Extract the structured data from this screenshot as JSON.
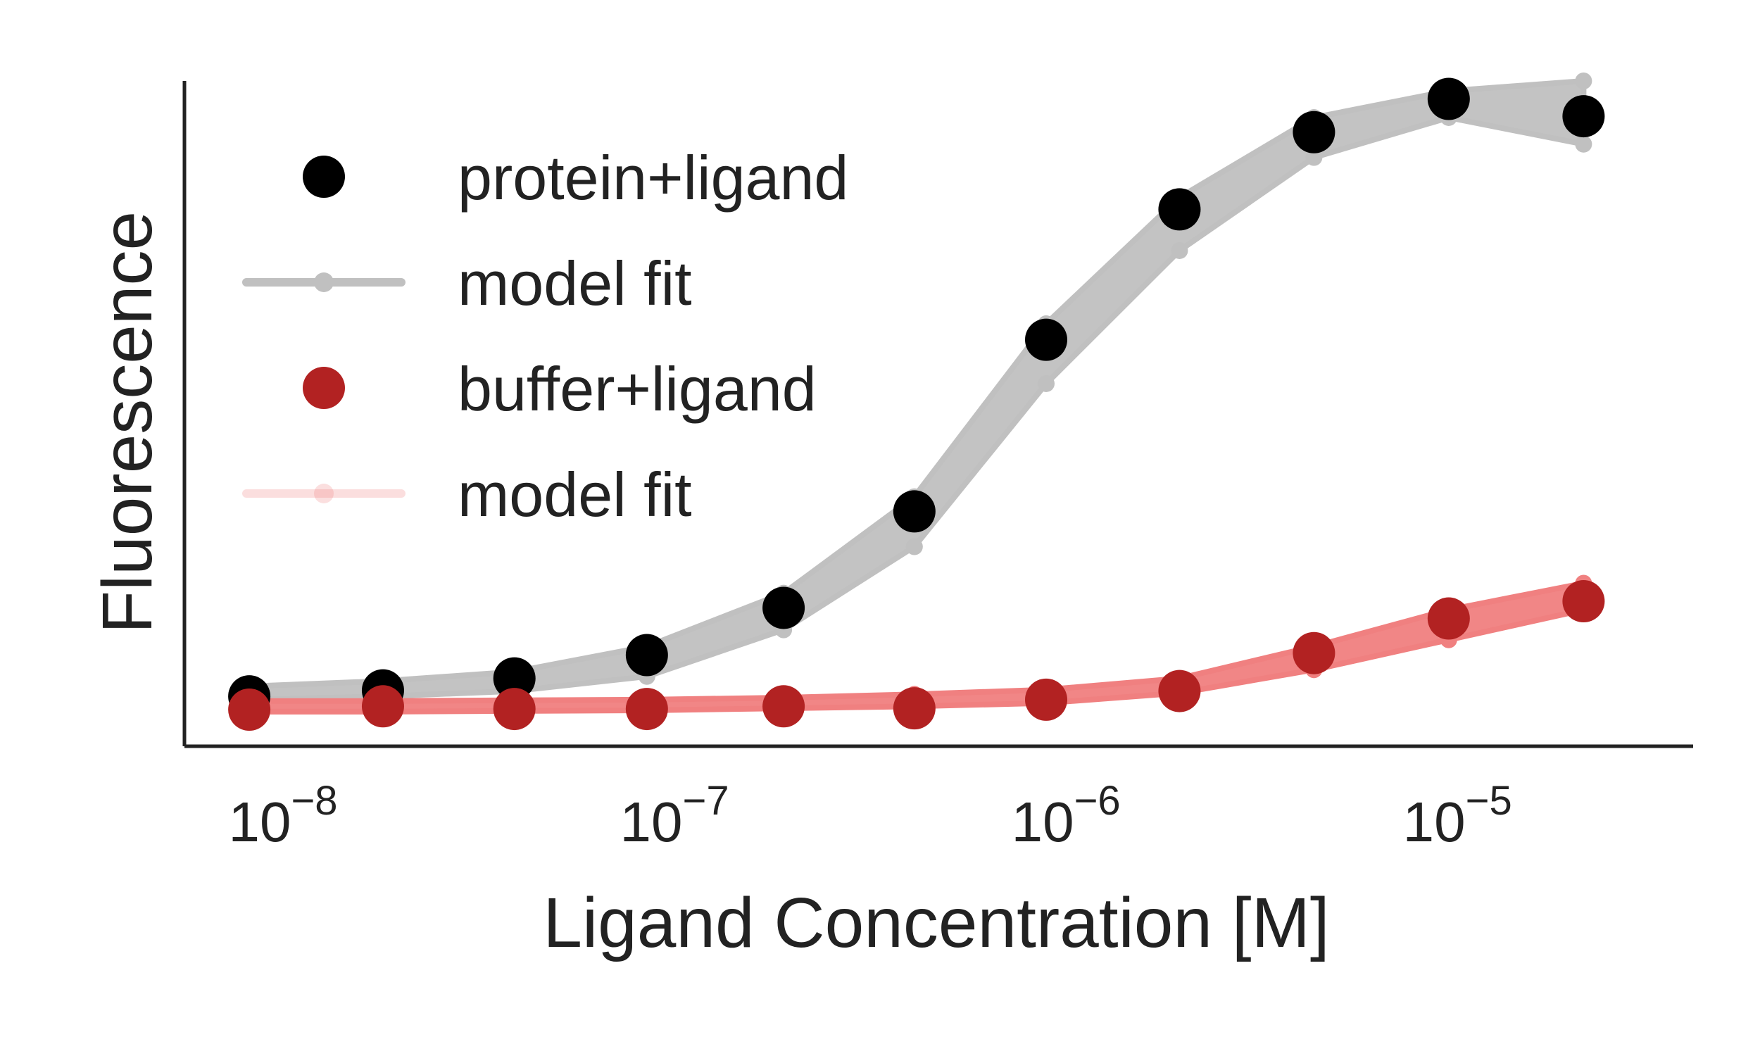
{
  "chart_data": {
    "type": "scatter",
    "xlabel": "Ligand Concentration [M]",
    "ylabel": "Fluorescence",
    "xscale": "log",
    "xlim": [
      5.6e-09,
      4e-05
    ],
    "ylim": [
      0,
      1.0
    ],
    "grid": false,
    "legend": "upper-left",
    "x_ticks": [
      {
        "value": 1e-08,
        "base": "10",
        "exp": "−8"
      },
      {
        "value": 1e-07,
        "base": "10",
        "exp": "−7"
      },
      {
        "value": 1e-06,
        "base": "10",
        "exp": "−6"
      },
      {
        "value": 1e-05,
        "base": "10",
        "exp": "−5"
      }
    ],
    "x": [
      8.2e-09,
      1.8e-08,
      3.9e-08,
      8.5e-08,
      1.9e-07,
      4.1e-07,
      8.9e-07,
      1.95e-06,
      4.3e-06,
      9.5e-06,
      2.1e-05
    ],
    "series": [
      {
        "name": "protein+ligand",
        "kind": "points",
        "color": "#000000",
        "values": [
          0.075,
          0.084,
          0.102,
          0.137,
          0.208,
          0.353,
          0.611,
          0.807,
          0.923,
          0.973,
          0.947
        ]
      },
      {
        "name": "model fit",
        "kind": "band",
        "color": "#c0c0c0",
        "lower": [
          0.07,
          0.075,
          0.083,
          0.105,
          0.175,
          0.3,
          0.545,
          0.745,
          0.885,
          0.945,
          0.905
        ],
        "upper": [
          0.09,
          0.098,
          0.112,
          0.15,
          0.23,
          0.375,
          0.635,
          0.825,
          0.945,
          0.985,
          1.0
        ]
      },
      {
        "name": "buffer+ligand",
        "kind": "points",
        "color": "#b22222",
        "values": [
          0.055,
          0.06,
          0.056,
          0.056,
          0.06,
          0.057,
          0.07,
          0.083,
          0.14,
          0.192,
          0.218
        ]
      },
      {
        "name": "model fit",
        "kind": "band",
        "color": "#f08080",
        "lower": [
          0.052,
          0.052,
          0.053,
          0.054,
          0.057,
          0.06,
          0.065,
          0.08,
          0.115,
          0.16,
          0.205
        ],
        "upper": [
          0.068,
          0.068,
          0.069,
          0.07,
          0.073,
          0.078,
          0.085,
          0.102,
          0.15,
          0.205,
          0.245
        ]
      }
    ]
  }
}
